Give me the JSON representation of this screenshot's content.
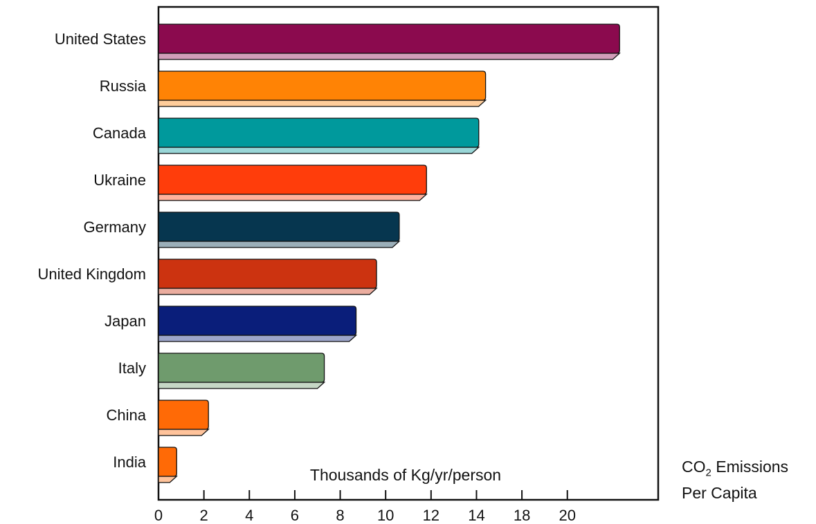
{
  "chart_data": {
    "type": "bar",
    "orientation": "horizontal",
    "categories": [
      "United States",
      "Russia",
      "Canada",
      "Ukraine",
      "Germany",
      "United Kingdom",
      "Japan",
      "Italy",
      "China",
      "India"
    ],
    "values": [
      20.3,
      14.4,
      14.1,
      11.8,
      10.6,
      9.6,
      8.7,
      7.3,
      2.2,
      0.8
    ],
    "colors": [
      "#8b0a4e",
      "#ff8305",
      "#00999c",
      "#ff3d0b",
      "#06364f",
      "#cc3310",
      "#0a1e7a",
      "#6f9b6d",
      "#ff6a06",
      "#ff6a06"
    ],
    "xtick_labels": [
      "0",
      "2",
      "4",
      "6",
      "8",
      "10",
      "12",
      "14",
      "18",
      "20"
    ],
    "xlim": [
      0,
      22
    ],
    "unit_label": "Thousands of Kg/yr/person",
    "side_title": {
      "prefix": "CO",
      "subscript": "2",
      "suffix": " Emissions",
      "line2": "Per Capita"
    },
    "grid": false,
    "legend": "none"
  }
}
